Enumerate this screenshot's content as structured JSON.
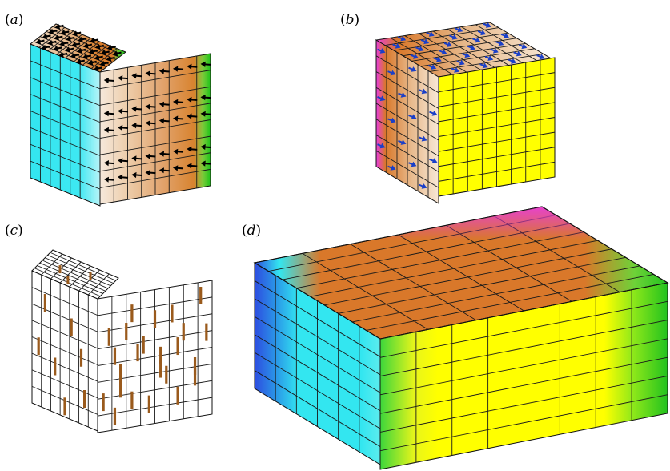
{
  "panels": [
    {
      "id": "a",
      "label_open": "(",
      "label_letter": "a",
      "label_close": ")",
      "arrow_color": "#000000"
    },
    {
      "id": "b",
      "label_open": "(",
      "label_letter": "b",
      "label_close": ")",
      "arrow_color": "#1a3fc8"
    },
    {
      "id": "c",
      "label_open": "(",
      "label_letter": "c",
      "label_close": ")",
      "rod_color": "#9a5a1c"
    },
    {
      "id": "d",
      "label_open": "(",
      "label_letter": "d",
      "label_close": ")"
    }
  ],
  "colors": {
    "cyan": "#33e6f0",
    "pale": "#fbeee0",
    "orange": "#d9782a",
    "green": "#22c21e",
    "magenta": "#e83ed8",
    "yellow": "#ffff00",
    "blue": "#2d4de0",
    "grid_line": "#1a1a1a"
  }
}
